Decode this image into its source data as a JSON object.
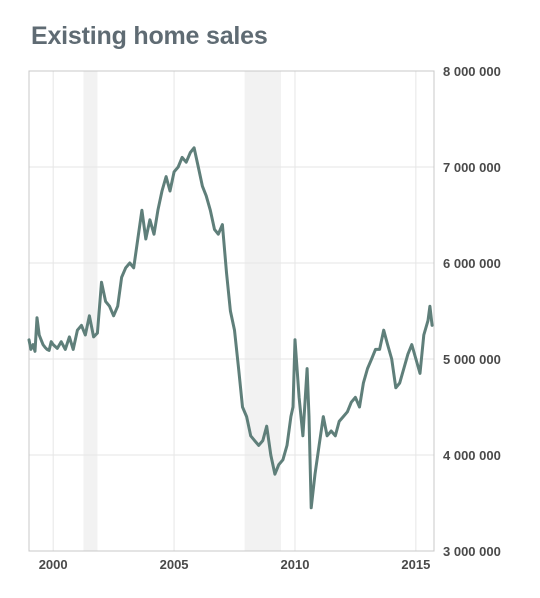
{
  "chart_data": {
    "type": "line",
    "title": "Existing home sales",
    "xlabel": "",
    "ylabel": "",
    "xlim": [
      1999.0,
      2015.75
    ],
    "ylim": [
      3000000,
      8000000
    ],
    "x_ticks": [
      2000,
      2005,
      2010,
      2015
    ],
    "x_tick_labels": [
      "2000",
      "2005",
      "2010",
      "2015"
    ],
    "y_ticks": [
      3000000,
      4000000,
      5000000,
      6000000,
      7000000,
      8000000
    ],
    "y_tick_labels": [
      "3 000 000",
      "4 000 000",
      "5 000 000",
      "6 000 000",
      "7 000 000",
      "8 000 000"
    ],
    "y_axis_side": "right",
    "grid": true,
    "legend": "none",
    "recessions": [
      [
        2001.25,
        2001.83
      ],
      [
        2007.92,
        2009.42
      ]
    ],
    "colors": {
      "line": "#5f7f7a",
      "recession": "#f2f2f2",
      "grid": "#e6e6e6",
      "frame": "#c8c8c8"
    },
    "series": [
      {
        "x": [
          1999.0,
          1999.08,
          1999.17,
          1999.25,
          1999.33,
          1999.42,
          1999.5,
          1999.58,
          1999.67,
          1999.75,
          1999.83,
          1999.92,
          2000.0,
          2000.17,
          2000.33,
          2000.5,
          2000.67,
          2000.83,
          2001.0,
          2001.17,
          2001.33,
          2001.5,
          2001.67,
          2001.83,
          2002.0,
          2002.17,
          2002.33,
          2002.5,
          2002.67,
          2002.83,
          2003.0,
          2003.17,
          2003.33,
          2003.5,
          2003.67,
          2003.83,
          2004.0,
          2004.17,
          2004.33,
          2004.5,
          2004.67,
          2004.83,
          2005.0,
          2005.17,
          2005.33,
          2005.5,
          2005.67,
          2005.83,
          2006.0,
          2006.17,
          2006.33,
          2006.5,
          2006.67,
          2006.83,
          2007.0,
          2007.17,
          2007.33,
          2007.5,
          2007.67,
          2007.83,
          2008.0,
          2008.17,
          2008.33,
          2008.5,
          2008.67,
          2008.83,
          2009.0,
          2009.17,
          2009.33,
          2009.5,
          2009.67,
          2009.83,
          2009.92,
          2010.0,
          2010.17,
          2010.33,
          2010.5,
          2010.58,
          2010.67,
          2010.83,
          2011.0,
          2011.17,
          2011.33,
          2011.5,
          2011.67,
          2011.83,
          2012.0,
          2012.17,
          2012.33,
          2012.5,
          2012.67,
          2012.83,
          2013.0,
          2013.17,
          2013.33,
          2013.5,
          2013.67,
          2013.83,
          2014.0,
          2014.17,
          2014.33,
          2014.5,
          2014.67,
          2014.83,
          2015.0,
          2015.17,
          2015.33,
          2015.5,
          2015.58,
          2015.67
        ],
        "y": [
          5200000,
          5100000,
          5150000,
          5080000,
          5430000,
          5250000,
          5200000,
          5150000,
          5120000,
          5100000,
          5090000,
          5180000,
          5150000,
          5110000,
          5180000,
          5100000,
          5230000,
          5100000,
          5300000,
          5350000,
          5250000,
          5450000,
          5230000,
          5270000,
          5800000,
          5600000,
          5550000,
          5450000,
          5550000,
          5850000,
          5950000,
          6000000,
          5950000,
          6250000,
          6550000,
          6250000,
          6450000,
          6300000,
          6550000,
          6750000,
          6900000,
          6750000,
          6950000,
          7000000,
          7100000,
          7050000,
          7150000,
          7200000,
          7000000,
          6800000,
          6700000,
          6550000,
          6350000,
          6300000,
          6400000,
          5900000,
          5500000,
          5300000,
          4900000,
          4500000,
          4400000,
          4200000,
          4150000,
          4100000,
          4150000,
          4300000,
          4000000,
          3800000,
          3900000,
          3950000,
          4100000,
          4400000,
          4500000,
          5200000,
          4600000,
          4200000,
          4900000,
          4400000,
          3450000,
          3800000,
          4100000,
          4400000,
          4200000,
          4250000,
          4200000,
          4350000,
          4400000,
          4450000,
          4550000,
          4600000,
          4500000,
          4750000,
          4900000,
          5000000,
          5100000,
          5100000,
          5300000,
          5150000,
          5000000,
          4700000,
          4750000,
          4900000,
          5050000,
          5150000,
          5000000,
          4850000,
          5250000,
          5400000,
          5550000,
          5350000
        ]
      }
    ]
  }
}
